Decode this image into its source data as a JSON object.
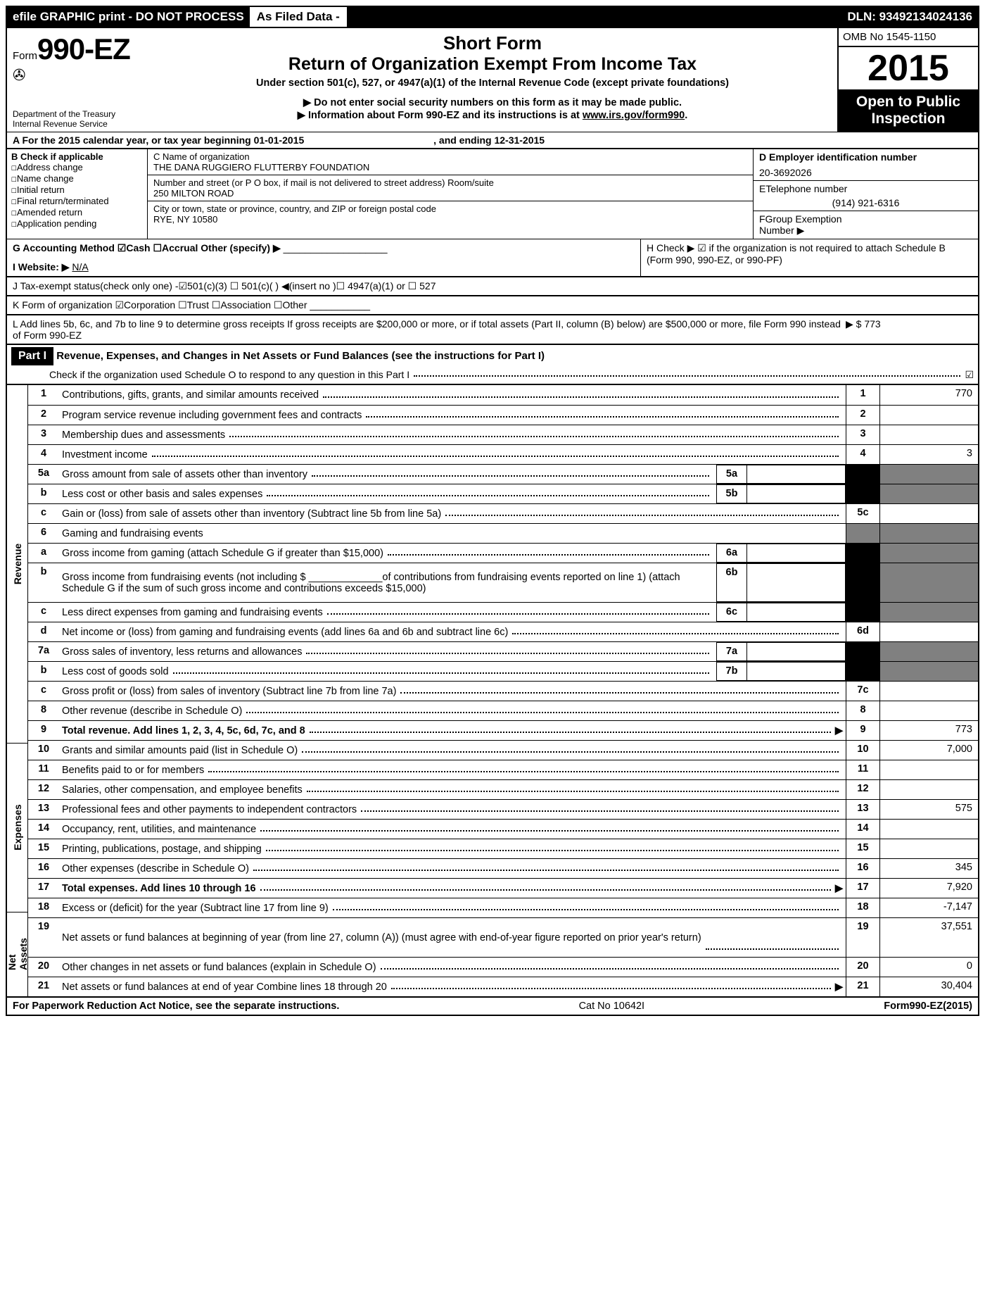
{
  "topbar": {
    "left": "efile GRAPHIC print - DO NOT PROCESS",
    "mid": "As Filed Data -",
    "right": "DLN: 93492134024136"
  },
  "header": {
    "form_prefix": "Form",
    "form_no": "990-EZ",
    "dept1": "Department of the Treasury",
    "dept2": "Internal Revenue Service",
    "t1": "Short Form",
    "t2": "Return of Organization Exempt From Income Tax",
    "t3": "Under section 501(c), 527, or 4947(a)(1) of the Internal Revenue Code (except private foundations)",
    "t4": "▶ Do not enter social security numbers on this form as it may be made public.",
    "t5": "▶ Information about Form 990-EZ and its instructions is at ",
    "t5_link": "www.irs.gov/form990",
    "omb": "OMB No 1545-1150",
    "year": "2015",
    "open1": "Open to Public",
    "open2": "Inspection"
  },
  "A": {
    "text": "A  For the 2015 calendar year, or tax year beginning 01-01-2015",
    "end": ", and ending 12-31-2015"
  },
  "B": {
    "hdr": "B  Check if applicable",
    "items": [
      "Address change",
      "Name change",
      "Initial return",
      "Final return/terminated",
      "Amended return",
      "Application pending"
    ]
  },
  "C": {
    "lbl": "C Name of organization",
    "name": "THE DANA RUGGIERO FLUTTERBY FOUNDATION",
    "addr_lbl": "Number and street (or P O box, if mail is not delivered to street address) Room/suite",
    "addr": "250 MILTON ROAD",
    "city_lbl": "City or town, state or province, country, and ZIP or foreign postal code",
    "city": "RYE, NY  10580"
  },
  "D": {
    "lbl": "D Employer identification number",
    "val": "20-3692026",
    "E_lbl": "ETelephone number",
    "E_val": "(914) 921-6316",
    "F_lbl": "FGroup Exemption",
    "F_lbl2": "Number   ▶"
  },
  "G": "G Accounting Method   ☑Cash  ☐Accrual  Other (specify) ▶",
  "H": "H  Check ▶ ☑ if the organization is not required to attach Schedule B (Form 990, 990-EZ, or 990-PF)",
  "I": "I Website: ▶ ",
  "I_val": "N/A",
  "J": "J Tax-exempt status(check only one) -☑501(c)(3) ☐ 501(c)( ) ◀(insert no )☐ 4947(a)(1) or ☐ 527",
  "K": "K Form of organization   ☑Corporation  ☐Trust  ☐Association  ☐Other",
  "L": "L Add lines 5b, 6c, and 7b to line 9 to determine gross receipts If gross receipts are $200,000 or more, or if total assets (Part II, column (B) below) are $500,000 or more, file Form 990 instead of Form 990-EZ",
  "L_val": "▶ $ 773",
  "part1": {
    "hdr": "Part I",
    "title": "Revenue, Expenses, and Changes in Net Assets or Fund Balances (see the instructions for Part I)",
    "sub": "Check if the organization used Schedule O to respond to any question in this Part I",
    "sub_ck": "☑"
  },
  "sides": {
    "rev": "Revenue",
    "exp": "Expenses",
    "na": "Net Assets"
  },
  "lines": [
    {
      "n": "1",
      "d": "Contributions, gifts, grants, and similar amounts received",
      "c": "1",
      "v": "770"
    },
    {
      "n": "2",
      "d": "Program service revenue including government fees and contracts",
      "c": "2",
      "v": ""
    },
    {
      "n": "3",
      "d": "Membership dues and assessments",
      "c": "3",
      "v": ""
    },
    {
      "n": "4",
      "d": "Investment income",
      "c": "4",
      "v": "3"
    },
    {
      "n": "5a",
      "d": "Gross amount from sale of assets other than inventory",
      "mini": "5a",
      "shade": true
    },
    {
      "n": "b",
      "d": "Less cost or other basis and sales expenses",
      "mini": "5b",
      "shade": true
    },
    {
      "n": "c",
      "d": "Gain or (loss) from sale of assets other than inventory (Subtract line 5b from line 5a)",
      "c": "5c",
      "v": ""
    },
    {
      "n": "6",
      "d": "Gaming and fundraising events",
      "blank": true
    },
    {
      "n": "a",
      "d": "Gross income from gaming (attach Schedule G if greater than $15,000)",
      "mini": "6a",
      "shade": true
    },
    {
      "n": "b",
      "d": "Gross income from fundraising events (not including $ _____________of contributions from fundraising events reported on line 1) (attach Schedule G if the sum of such gross income and contributions exceeds $15,000)",
      "mini": "6b",
      "shade": true,
      "tall": true
    },
    {
      "n": "c",
      "d": "Less direct expenses from gaming and fundraising events",
      "mini": "6c",
      "shade": true
    },
    {
      "n": "d",
      "d": "Net income or (loss) from gaming and fundraising events (add lines 6a and 6b and subtract line 6c)",
      "c": "6d",
      "v": ""
    },
    {
      "n": "7a",
      "d": "Gross sales of inventory, less returns and allowances",
      "mini": "7a",
      "shade": true
    },
    {
      "n": "b",
      "d": "Less cost of goods sold",
      "mini": "7b",
      "shade": true
    },
    {
      "n": "c",
      "d": "Gross profit or (loss) from sales of inventory (Subtract line 7b from line 7a)",
      "c": "7c",
      "v": ""
    },
    {
      "n": "8",
      "d": "Other revenue (describe in Schedule O)",
      "c": "8",
      "v": ""
    },
    {
      "n": "9",
      "d": "Total revenue. Add lines 1, 2, 3, 4, 5c, 6d, 7c, and 8",
      "c": "9",
      "v": "773",
      "bold": true,
      "arrow": true
    },
    {
      "n": "10",
      "d": "Grants and similar amounts paid (list in Schedule O)",
      "c": "10",
      "v": "7,000"
    },
    {
      "n": "11",
      "d": "Benefits paid to or for members",
      "c": "11",
      "v": ""
    },
    {
      "n": "12",
      "d": "Salaries, other compensation, and employee benefits",
      "c": "12",
      "v": ""
    },
    {
      "n": "13",
      "d": "Professional fees and other payments to independent contractors",
      "c": "13",
      "v": "575"
    },
    {
      "n": "14",
      "d": "Occupancy, rent, utilities, and maintenance",
      "c": "14",
      "v": ""
    },
    {
      "n": "15",
      "d": "Printing, publications, postage, and shipping",
      "c": "15",
      "v": ""
    },
    {
      "n": "16",
      "d": "Other expenses (describe in Schedule O)",
      "c": "16",
      "v": "345"
    },
    {
      "n": "17",
      "d": "Total expenses. Add lines 10 through 16",
      "c": "17",
      "v": "7,920",
      "bold": true,
      "arrow": true
    },
    {
      "n": "18",
      "d": "Excess or (deficit) for the year (Subtract line 17 from line 9)",
      "c": "18",
      "v": "-7,147"
    },
    {
      "n": "19",
      "d": "Net assets or fund balances at beginning of year (from line 27, column (A)) (must agree with end-of-year figure reported on prior year's return)",
      "c": "19",
      "v": "37,551",
      "tall": true
    },
    {
      "n": "20",
      "d": "Other changes in net assets or fund balances (explain in Schedule O)",
      "c": "20",
      "v": "0"
    },
    {
      "n": "21",
      "d": "Net assets or fund balances at end of year Combine lines 18 through 20",
      "c": "21",
      "v": "30,404",
      "arrow": true
    }
  ],
  "side_spans": {
    "rev_start": 0,
    "rev_end": 16,
    "exp_start": 17,
    "exp_end": 24,
    "na_start": 25,
    "na_end": 28
  },
  "footer": {
    "l": "For Paperwork Reduction Act Notice, see the separate instructions.",
    "c": "Cat No 10642I",
    "r": "Form990-EZ(2015)"
  }
}
